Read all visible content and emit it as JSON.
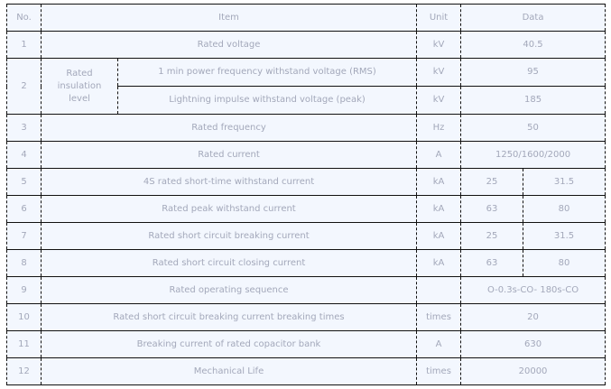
{
  "headers": {
    "no": "No.",
    "item": "Item",
    "unit": "Unit",
    "data": "Data"
  },
  "rows": [
    {
      "no": "1",
      "item": "Rated voltage",
      "unit": "kV",
      "data": "40.5"
    },
    {
      "no": "2",
      "group": "Rated insulation level",
      "sub": [
        {
          "item": "1 min power frequency withstand voltage (RMS)",
          "unit": "kV",
          "data": "95"
        },
        {
          "item": "Lightning impulse withstand voltage (peak)",
          "unit": "kV",
          "data": "185"
        }
      ]
    },
    {
      "no": "3",
      "item": "Rated frequency",
      "unit": "Hz",
      "data": "50"
    },
    {
      "no": "4",
      "item": "Rated current",
      "unit": "A",
      "data": "1250/1600/2000"
    },
    {
      "no": "5",
      "item": "4S rated short-time withstand current",
      "unit": "kA",
      "data_a": "25",
      "data_b": "31.5"
    },
    {
      "no": "6",
      "item": "Rated peak withstand current",
      "unit": "kA",
      "data_a": "63",
      "data_b": "80"
    },
    {
      "no": "7",
      "item": "Rated short circuit breaking current",
      "unit": "kA",
      "data_a": "25",
      "data_b": "31.5"
    },
    {
      "no": "8",
      "item": "Rated short circuit closing current",
      "unit": "kA",
      "data_a": "63",
      "data_b": "80"
    },
    {
      "no": "9",
      "item": "Rated operating sequence",
      "unit": "",
      "data": "O-0.3s-CO- 180s-CO"
    },
    {
      "no": "10",
      "item": "Rated short circuit breaking current breaking times",
      "unit": "times",
      "data": "20"
    },
    {
      "no": "11",
      "item": "Breaking current of rated copacitor bank",
      "unit": "A",
      "data": "630"
    },
    {
      "no": "12",
      "item": "Mechanical Life",
      "unit": "times",
      "data": "20000"
    }
  ]
}
